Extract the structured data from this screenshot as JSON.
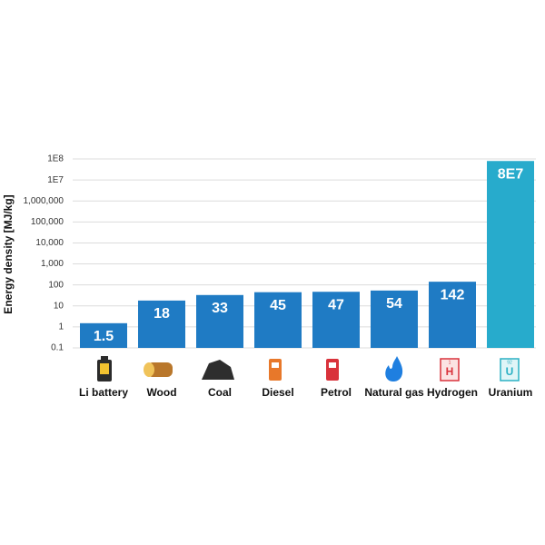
{
  "chart_data": {
    "type": "bar",
    "y_label": "Energy density [MJ/kg]",
    "categories": [
      "Li battery",
      "Wood",
      "Coal",
      "Diesel",
      "Petrol",
      "Natural gas",
      "Hydrogen",
      "Uranium"
    ],
    "values": [
      1.5,
      18,
      33,
      45,
      47,
      54,
      142,
      80000000
    ],
    "value_labels": [
      "1.5",
      "18",
      "33",
      "45",
      "47",
      "54",
      "142",
      "8E7"
    ],
    "colors": [
      "#1f7bc4",
      "#1f7bc4",
      "#1f7bc4",
      "#1f7bc4",
      "#1f7bc4",
      "#1f7bc4",
      "#1f7bc4",
      "#27abcc"
    ],
    "log_scale": true,
    "grid": true,
    "ylim": [
      0.1,
      100000000
    ],
    "yticks": [
      0.1,
      1,
      10,
      100,
      {
        "value": 1000,
        "label": "1,000"
      },
      {
        "value": 10000,
        "label": "10,000"
      },
      {
        "value": 100000,
        "label": "100,000"
      },
      {
        "value": 1000000,
        "label": "1,000,000"
      },
      {
        "value": 10000000,
        "label": "1E7"
      },
      {
        "value": 100000000,
        "label": "1E8"
      }
    ],
    "element_symbols": [
      "H",
      "U"
    ],
    "element_numbers": [
      1,
      92
    ]
  }
}
